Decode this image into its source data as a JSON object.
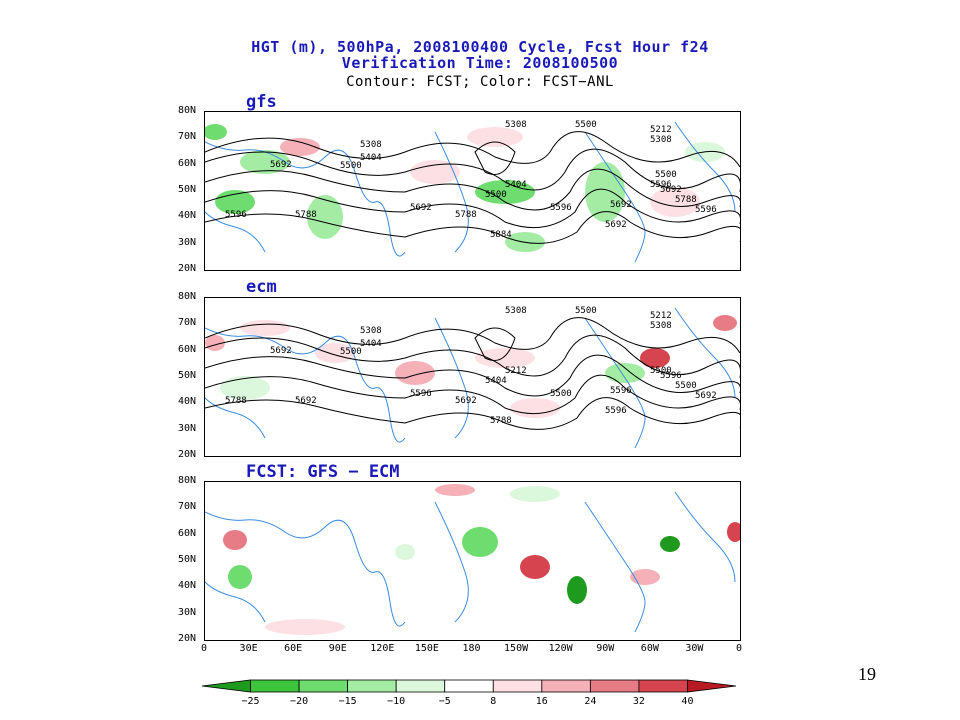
{
  "title": {
    "line1": "HGT (m), 500hPa, 2008100400 Cycle, Fcst Hour f24",
    "line2": "Verification Time: 2008100500",
    "line3": "Contour: FCST; Color: FCST−ANL"
  },
  "panels": [
    {
      "id": "gfs",
      "label": "gfs",
      "contour_labels": [
        "5308",
        "5500",
        "5212",
        "5308",
        "5308",
        "5404",
        "5500",
        "5692",
        "5404",
        "5500",
        "5596",
        "5692",
        "5788",
        "5596",
        "5692",
        "5788",
        "5884",
        "5692",
        "5596",
        "5788",
        "5596",
        "5692",
        "5500"
      ]
    },
    {
      "id": "ecm",
      "label": "ecm",
      "contour_labels": [
        "5308",
        "5500",
        "5212",
        "5308",
        "5308",
        "5404",
        "5500",
        "5692",
        "5212",
        "5404",
        "5500",
        "5596",
        "5692",
        "5788",
        "5596",
        "5692",
        "5788",
        "5596",
        "5692",
        "5500",
        "5500",
        "5596"
      ]
    },
    {
      "id": "diff",
      "label": "FCST: GFS − ECM",
      "contour_labels": []
    }
  ],
  "lat_labels": [
    "80N",
    "70N",
    "60N",
    "50N",
    "40N",
    "30N",
    "20N"
  ],
  "lon_labels": [
    "0",
    "30E",
    "60E",
    "90E",
    "120E",
    "150E",
    "180",
    "150W",
    "120W",
    "90W",
    "60W",
    "30W",
    "0"
  ],
  "colorbar": {
    "ticks": [
      "−25",
      "−20",
      "−15",
      "−10",
      "−5",
      "8",
      "16",
      "24",
      "32",
      "40"
    ],
    "colors": [
      "#1e9b1e",
      "#3cc43c",
      "#6edc6e",
      "#a4eca4",
      "#dcf8dc",
      "#ffffff",
      "#fde0e4",
      "#f5b0b8",
      "#e87c86",
      "#d6454f",
      "#b81a24"
    ]
  },
  "page_number": "19",
  "colors": {
    "title_blue": "#1a1ab8",
    "coast": "#3c8ce0",
    "contour": "#000000"
  }
}
